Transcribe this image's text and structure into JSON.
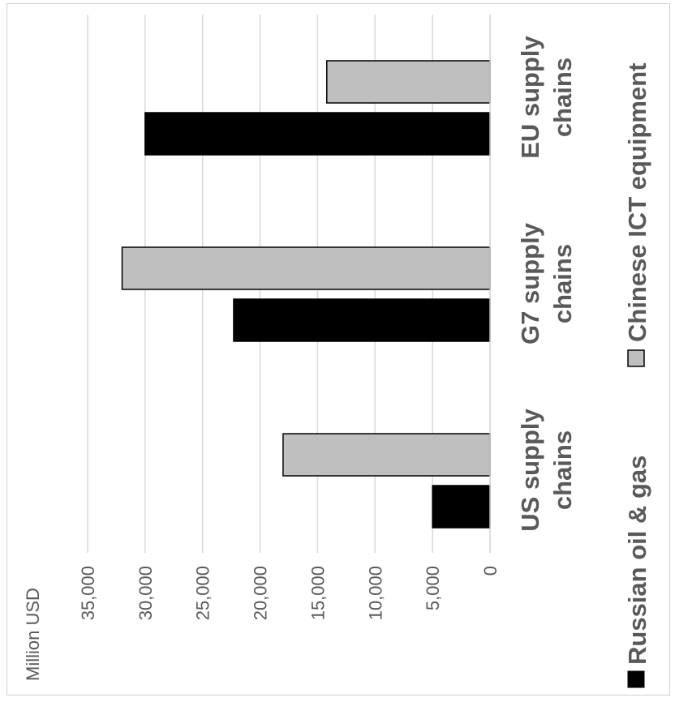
{
  "chart_data": {
    "type": "bar",
    "orientation": "horizontal",
    "rotated_90_ccw": true,
    "categories": [
      "US supply chains",
      "G7 supply chains",
      "EU supply chains"
    ],
    "category_lines": [
      [
        "US supply",
        "chains"
      ],
      [
        "G7 supply",
        "chains"
      ],
      [
        "EU supply",
        "chains"
      ]
    ],
    "series": [
      {
        "name": "Russian oil & gas",
        "color": "#000000",
        "values": [
          5000,
          22300,
          30000
        ]
      },
      {
        "name": "Chinese ICT equipment",
        "color": "#bfbfbf",
        "values": [
          18000,
          32000,
          14200
        ]
      }
    ],
    "ylabel": "Million USD",
    "ylim": [
      0,
      35000
    ],
    "ticks": [
      0,
      5000,
      10000,
      15000,
      20000,
      25000,
      30000,
      35000
    ],
    "tick_labels": [
      "0",
      "5,000",
      "10,000",
      "15,000",
      "20,000",
      "25,000",
      "30,000",
      "35,000"
    ],
    "grid": true,
    "legend_position": "right"
  }
}
